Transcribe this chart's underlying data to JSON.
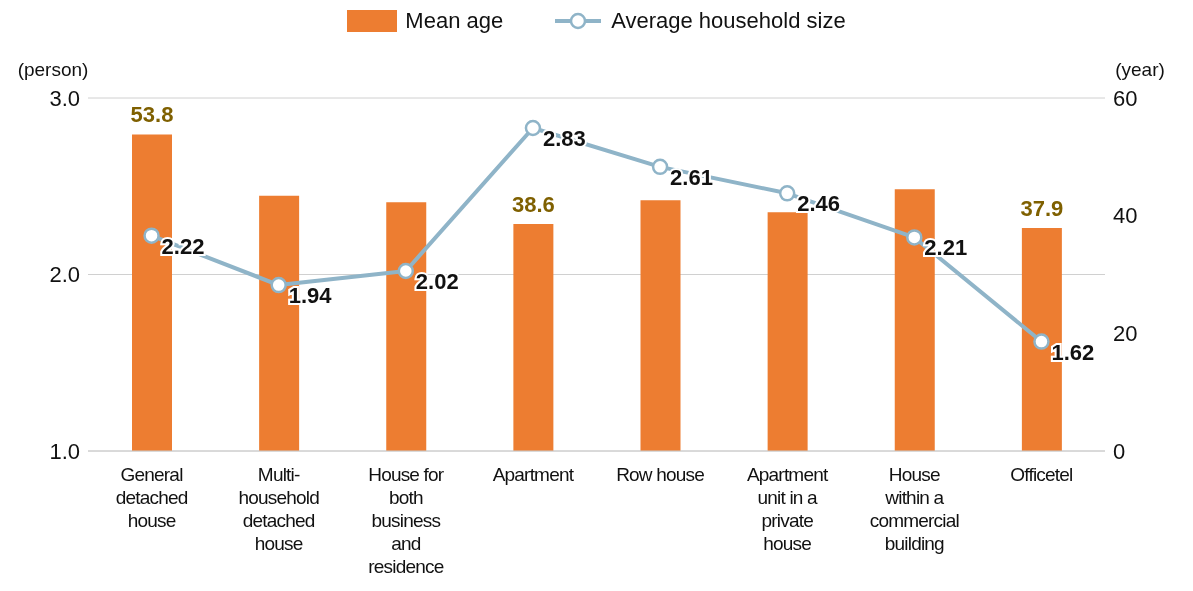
{
  "chart_data": {
    "type": "bar",
    "categories": [
      "General detached house",
      "Multi-household detached house",
      "House for both business and residence",
      "Apartment",
      "Row house",
      "Apartment unit in a private house",
      "House within a commercial building",
      "Officetel"
    ],
    "series": [
      {
        "name": "Mean age",
        "color": "#ed7d31",
        "axis": "y2",
        "values": [
          53.8,
          43.4,
          42.3,
          38.6,
          42.6,
          40.6,
          44.5,
          37.9
        ],
        "value_labels": [
          "53.8",
          null,
          null,
          "38.6",
          null,
          null,
          null,
          "37.9"
        ]
      },
      {
        "type": "line",
        "name": "Average household size",
        "color": "#8fb4c8",
        "axis": "y",
        "values": [
          2.22,
          1.94,
          2.02,
          2.83,
          2.61,
          2.46,
          2.21,
          1.62
        ],
        "value_labels": [
          "2.22",
          "1.94",
          "2.02",
          "2.83",
          "2.61",
          "2.46",
          "2.21",
          "1.62"
        ]
      }
    ],
    "ylabel": "(person)",
    "y2label": "(year)",
    "ylim": [
      1,
      3
    ],
    "yticks": [
      {
        "value": 1,
        "label": "1.0"
      },
      {
        "value": 2,
        "label": "2.0"
      },
      {
        "value": 3,
        "label": "3.0"
      }
    ],
    "y2lim": [
      0,
      60
    ],
    "y2ticks": [
      0,
      20,
      40,
      60
    ],
    "grid": "y",
    "legend": "top",
    "marker": "circle",
    "line_style": "solid"
  }
}
